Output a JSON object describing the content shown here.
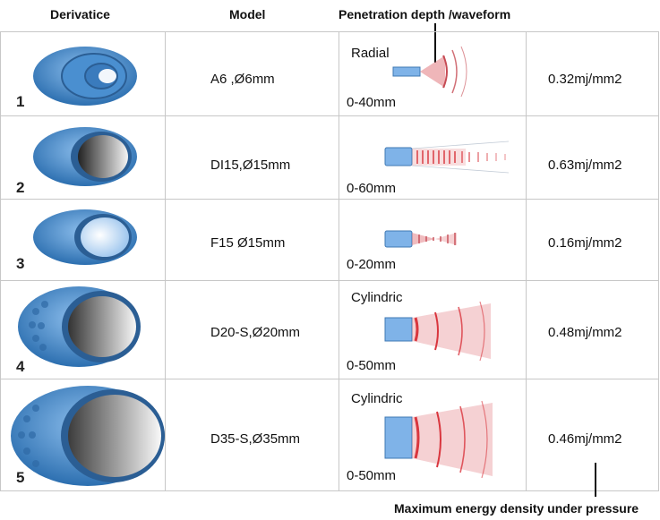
{
  "headers": {
    "derivative": "Derivatice",
    "model": "Model",
    "penetration": "Penetration depth /waveform"
  },
  "footer_label": "Maximum energy density under pressure",
  "rows": [
    {
      "number": "1",
      "model": "A6 ,Ø6mm",
      "wave_type": "Radial",
      "depth": "0-40mm",
      "energy": "0.32mj/mm2"
    },
    {
      "number": "2",
      "model": "DI15,Ø15mm",
      "wave_type": "",
      "depth": "0-60mm",
      "energy": "0.63mj/mm2"
    },
    {
      "number": "3",
      "model": "F15 Ø15mm",
      "wave_type": "",
      "depth": "0-20mm",
      "energy": "0.16mj/mm2"
    },
    {
      "number": "4",
      "model": "D20-S,Ø20mm",
      "wave_type": "Cylindric",
      "depth": "0-50mm",
      "energy": "0.48mj/mm2"
    },
    {
      "number": "5",
      "model": "D35-S,Ø35mm",
      "wave_type": "Cylindric",
      "depth": "0-50mm",
      "energy": "0.46mj/mm2"
    }
  ],
  "icons": {
    "device": "handpiece-transmitter-icon",
    "wave_radial": "radial-wave-icon",
    "wave_focused": "focused-wave-icon",
    "wave_cylindric": "cylindric-wave-icon"
  },
  "colors": {
    "device_blue": "#3f86c8",
    "wave_red": "#d9363e",
    "emitter_blue": "#7fb3e8"
  }
}
